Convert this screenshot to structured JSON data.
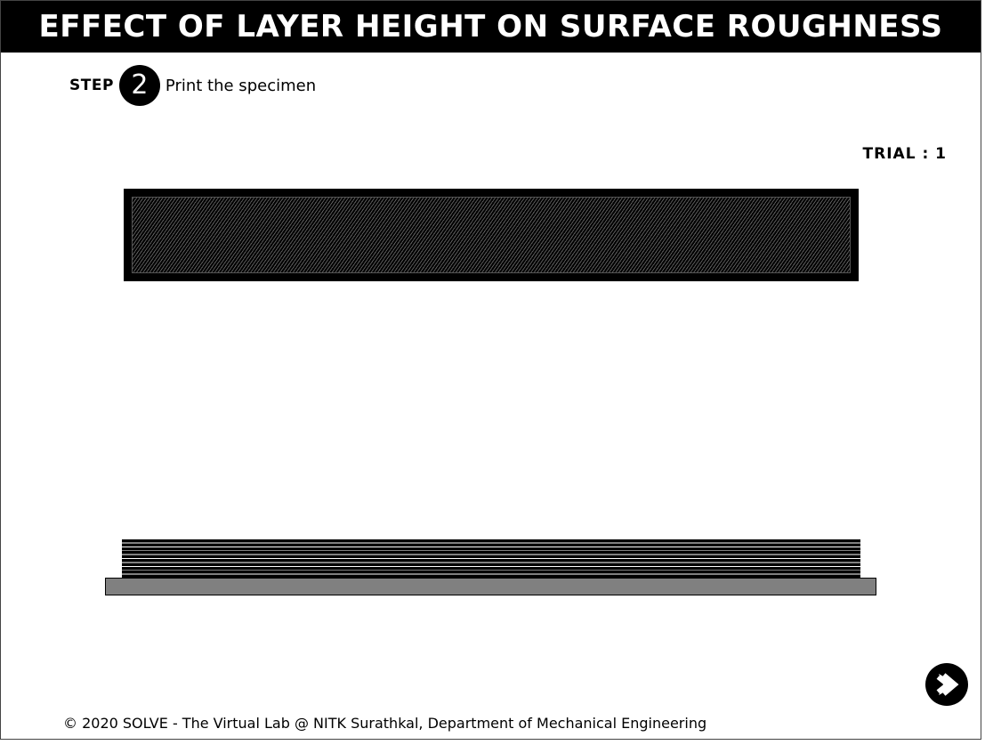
{
  "header": {
    "title": "EFFECT OF LAYER HEIGHT ON SURFACE ROUGHNESS"
  },
  "step": {
    "label": "STEP",
    "number": "2",
    "instruction": "Print the specimen"
  },
  "trial": {
    "text": "TRIAL : 1"
  },
  "icons": {
    "next": "next-arrow-icon"
  },
  "colors": {
    "header_bg": "#000000",
    "header_text": "#ffffff",
    "bed": "#808080",
    "specimen": "#000000"
  },
  "footer": {
    "text": "© 2020 SOLVE - The Virtual Lab @ NITK Surathkal, Department of Mechanical Engineering"
  }
}
